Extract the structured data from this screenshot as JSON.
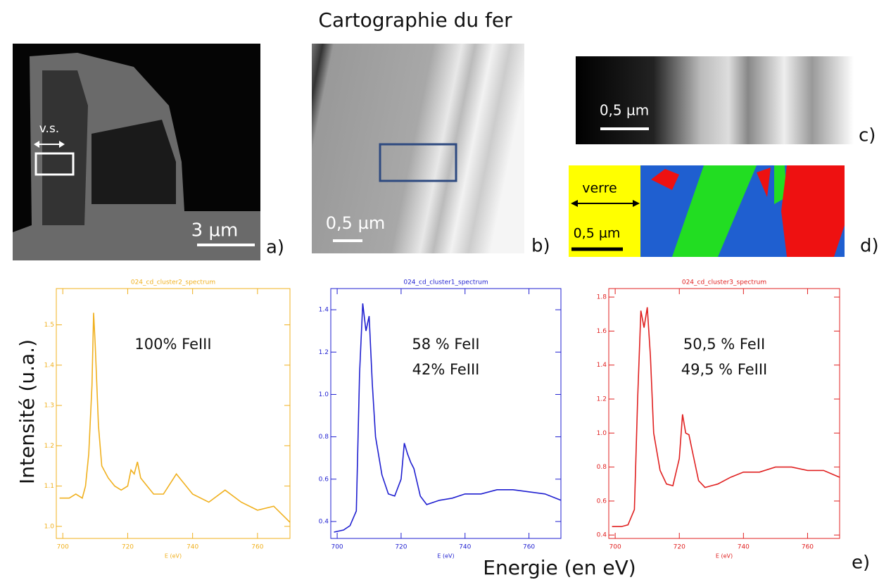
{
  "title": "Cartographie du fer",
  "panels": {
    "a": {
      "label": "a)",
      "annotations": [
        "v.s.",
        "3 µm"
      ]
    },
    "b": {
      "label": "b)",
      "annotations": [
        "0,5 µm"
      ]
    },
    "c": {
      "label": "c)",
      "annotations": [
        "0,5 µm"
      ]
    },
    "d": {
      "label": "d)",
      "annotations": [
        "verre",
        "0,5 µm"
      ]
    },
    "e": {
      "label": "e)"
    }
  },
  "y_label": "Intensité (u.a.)",
  "x_label": "Energie (en eV)",
  "chart_data": [
    {
      "type": "line",
      "title": "024_cd_cluster2_spectrum",
      "xlabel": "E (eV)",
      "color": "#f0b01e",
      "annotations": [
        "100% FeIII"
      ],
      "xlim": [
        698,
        770
      ],
      "xticks": [
        700,
        720,
        740,
        760
      ],
      "ylim": [
        0.97,
        1.59
      ],
      "yticks": [
        {
          "value": 1,
          "label": "1.0"
        },
        1.1,
        1.2,
        1.3,
        1.4,
        1.5
      ],
      "x": [
        699,
        702,
        704,
        706,
        707,
        708,
        709,
        709.5,
        710,
        711,
        712,
        714,
        716,
        718,
        720,
        721,
        722,
        723,
        724,
        726,
        728,
        731,
        735,
        740,
        745,
        750,
        755,
        760,
        765,
        770
      ],
      "values": [
        1.07,
        1.07,
        1.08,
        1.07,
        1.1,
        1.18,
        1.35,
        1.53,
        1.45,
        1.25,
        1.15,
        1.12,
        1.1,
        1.09,
        1.1,
        1.14,
        1.13,
        1.16,
        1.12,
        1.1,
        1.08,
        1.08,
        1.13,
        1.08,
        1.06,
        1.09,
        1.06,
        1.04,
        1.05,
        1.01
      ]
    },
    {
      "type": "line",
      "title": "024_cd_cluster1_spectrum",
      "xlabel": "E (eV)",
      "color": "#1f1fd0",
      "annotations": [
        "58 % FeII",
        "42% FeIII"
      ],
      "xlim": [
        698,
        770
      ],
      "xticks": [
        700,
        720,
        740,
        760
      ],
      "ylim": [
        0.32,
        1.5
      ],
      "yticks": [
        0.4,
        0.6,
        0.8,
        {
          "value": 1,
          "label": "1.0"
        },
        1.2,
        1.4
      ],
      "x": [
        699,
        702,
        704,
        706,
        707,
        708,
        709,
        710,
        711,
        712,
        714,
        716,
        718,
        720,
        721,
        722,
        723,
        724,
        726,
        728,
        732,
        736,
        740,
        745,
        750,
        755,
        760,
        765,
        770
      ],
      "values": [
        0.35,
        0.36,
        0.38,
        0.45,
        1.1,
        1.43,
        1.3,
        1.37,
        1.05,
        0.8,
        0.62,
        0.53,
        0.52,
        0.6,
        0.77,
        0.72,
        0.68,
        0.65,
        0.52,
        0.48,
        0.5,
        0.51,
        0.53,
        0.53,
        0.55,
        0.55,
        0.54,
        0.53,
        0.5
      ]
    },
    {
      "type": "line",
      "title": "024_cd_cluster3_spectrum",
      "xlabel": "E (eV)",
      "color": "#e02020",
      "annotations": [
        "50,5 % FeII",
        "49,5 % FeIII"
      ],
      "xlim": [
        698,
        770
      ],
      "xticks": [
        700,
        720,
        740,
        760
      ],
      "ylim": [
        0.38,
        1.85
      ],
      "yticks": [
        0.4,
        0.6,
        0.8,
        {
          "value": 1,
          "label": "1.0"
        },
        1.2,
        1.4,
        1.6,
        1.8
      ],
      "x": [
        699,
        702,
        704,
        706,
        707,
        708,
        709,
        710,
        711,
        712,
        714,
        716,
        718,
        720,
        721,
        722,
        723,
        724,
        726,
        728,
        732,
        736,
        740,
        745,
        750,
        755,
        760,
        765,
        770
      ],
      "values": [
        0.45,
        0.45,
        0.46,
        0.55,
        1.2,
        1.72,
        1.62,
        1.74,
        1.45,
        1.0,
        0.78,
        0.7,
        0.69,
        0.85,
        1.11,
        1.0,
        0.99,
        0.9,
        0.72,
        0.68,
        0.7,
        0.74,
        0.77,
        0.77,
        0.8,
        0.8,
        0.78,
        0.78,
        0.74
      ]
    }
  ]
}
